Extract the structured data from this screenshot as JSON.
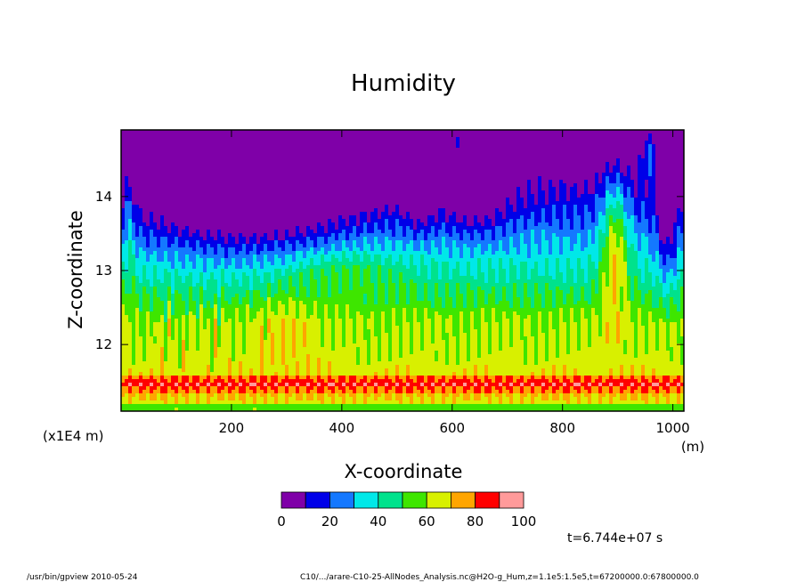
{
  "chart_data": {
    "type": "heatmap",
    "title": "Humidity",
    "xlabel": "X-coordinate",
    "ylabel": "Z-coordinate",
    "x_unit": "(m)",
    "y_scale_note": "(x1E4 m)",
    "xlim": [
      0,
      1020
    ],
    "ylim": [
      11.1,
      14.9
    ],
    "x_ticks": [
      200,
      400,
      600,
      800,
      1000
    ],
    "y_ticks": [
      12,
      13,
      14
    ],
    "grid": false,
    "levels": [
      0,
      10,
      20,
      30,
      40,
      50,
      60,
      70,
      80,
      90,
      100
    ],
    "colorbar_labels": [
      "0",
      "20",
      "40",
      "60",
      "80",
      "100"
    ],
    "palette": [
      "#7f00a8",
      "#0000e8",
      "#1478ff",
      "#00e8e8",
      "#00e28c",
      "#3ee600",
      "#d8f000",
      "#ffa500",
      "#ff0000",
      "#ff9a9a"
    ],
    "annotation": "t=6.744e+07 s",
    "field_description": "approximate humidity field: ~80-90 band near z=11.5, 60-70 mid layers, low values (0-20) aloft between x=50-500"
  },
  "footer": {
    "left": "/usr/bin/gpview   2010-05-24",
    "right": "C10/.../arare-C10-25-AllNodes_Analysis.nc@H2O-g_Hum,z=1.1e5:1.5e5,t=67200000.0:67800000.0"
  }
}
